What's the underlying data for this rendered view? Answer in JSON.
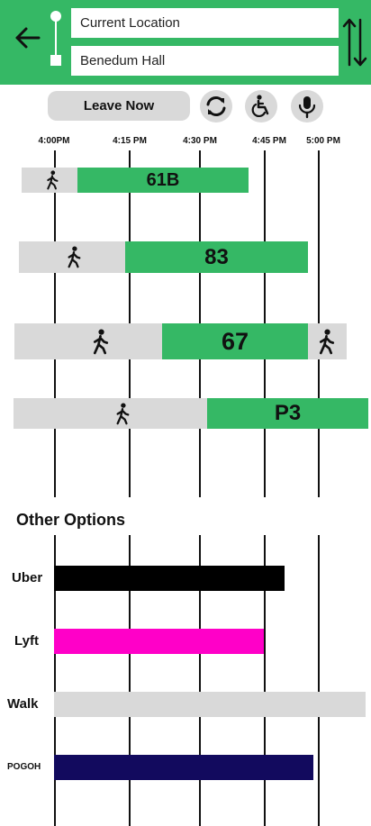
{
  "header": {
    "from_value": "Current Location",
    "to_value": "Benedum Hall",
    "back_icon": "arrow-left-icon",
    "swap_icon": "swap-vertical-icon"
  },
  "controls": {
    "leave_now_label": "Leave Now",
    "refresh_icon": "refresh-icon",
    "accessibility_icon": "wheelchair-icon",
    "voice_icon": "microphone-icon"
  },
  "timeline": {
    "ticks": [
      "4:00PM",
      "4:15 PM",
      "4:30 PM",
      "4:45 PM",
      "5:00 PM"
    ]
  },
  "routes": [
    {
      "line": "61B"
    },
    {
      "line": "83"
    },
    {
      "line": "67"
    },
    {
      "line": "P3"
    }
  ],
  "other_options": {
    "title": "Other Options",
    "items": [
      {
        "label": "Uber",
        "color": "#000000"
      },
      {
        "label": "Lyft",
        "color": "#ff00c8"
      },
      {
        "label": "Walk",
        "color": "#d9d9d9"
      },
      {
        "label": "POGOH",
        "color": "#120a5e"
      }
    ]
  },
  "colors": {
    "brand_green": "#35b865",
    "walk_gray": "#d9d9d9"
  }
}
